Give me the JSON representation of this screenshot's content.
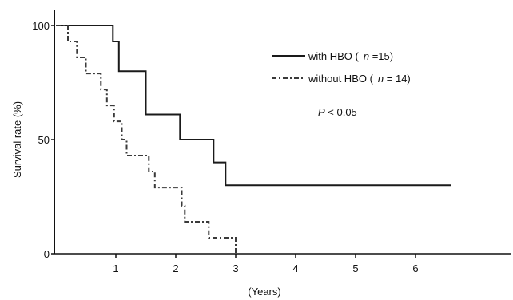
{
  "chart_data": {
    "type": "line",
    "step": true,
    "xlabel": "(Years)",
    "ylabel": "Survival rate (%)",
    "x_ticks": [
      "1",
      "2",
      "3",
      "4",
      "5",
      "6"
    ],
    "y_ticks": [
      "0",
      "50",
      "100"
    ],
    "xlim": [
      0,
      7.4
    ],
    "ylim": [
      0,
      100
    ],
    "series": [
      {
        "legend_label": "with HBO (",
        "n_symbol": "n",
        "n_text": " =15)",
        "line_style": "solid",
        "color": "#1a1a1a",
        "points": [
          [
            0,
            100
          ],
          [
            0.95,
            100
          ],
          [
            0.95,
            93
          ],
          [
            1.05,
            93
          ],
          [
            1.05,
            80
          ],
          [
            1.5,
            80
          ],
          [
            1.5,
            61
          ],
          [
            2.07,
            61
          ],
          [
            2.07,
            50
          ],
          [
            2.63,
            50
          ],
          [
            2.63,
            40
          ],
          [
            2.83,
            40
          ],
          [
            2.83,
            30
          ],
          [
            6.6,
            30
          ]
        ]
      },
      {
        "legend_label": "without HBO (",
        "n_symbol": "n",
        "n_text": " = 14)",
        "line_style": "dashdot",
        "color": "#3a3a3a",
        "points": [
          [
            0,
            100
          ],
          [
            0.2,
            100
          ],
          [
            0.2,
            93
          ],
          [
            0.35,
            93
          ],
          [
            0.35,
            86
          ],
          [
            0.5,
            86
          ],
          [
            0.5,
            79
          ],
          [
            0.75,
            79
          ],
          [
            0.75,
            72
          ],
          [
            0.85,
            72
          ],
          [
            0.85,
            65
          ],
          [
            0.97,
            65
          ],
          [
            0.97,
            58
          ],
          [
            1.1,
            58
          ],
          [
            1.1,
            50
          ],
          [
            1.18,
            50
          ],
          [
            1.18,
            43
          ],
          [
            1.55,
            43
          ],
          [
            1.55,
            36
          ],
          [
            1.65,
            36
          ],
          [
            1.65,
            29
          ],
          [
            2.1,
            29
          ],
          [
            2.1,
            21
          ],
          [
            2.15,
            21
          ],
          [
            2.15,
            14
          ],
          [
            2.55,
            14
          ],
          [
            2.55,
            7
          ],
          [
            3.0,
            7
          ],
          [
            3.0,
            0
          ]
        ]
      }
    ],
    "annotation": {
      "symbol": "P",
      "text": " <  0.05"
    }
  }
}
